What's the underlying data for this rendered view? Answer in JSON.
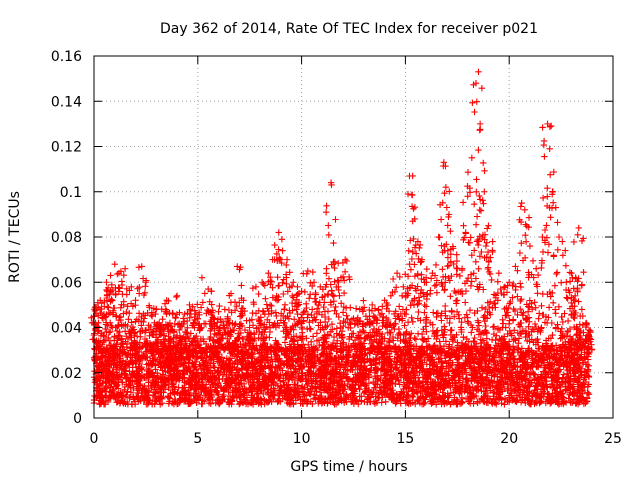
{
  "chart_data": {
    "type": "scatter",
    "title": "Day 362 of 2014, Rate Of TEC Index for receiver p021",
    "xlabel": "GPS time / hours",
    "ylabel": "ROTI / TECUs",
    "xlim": [
      0,
      25
    ],
    "ylim": [
      0,
      0.16
    ],
    "xticks": [
      0,
      5,
      10,
      15,
      20,
      25
    ],
    "xtick_labels": [
      "0",
      "5",
      "10",
      "15",
      "20",
      "25"
    ],
    "yticks": [
      0,
      0.02,
      0.04,
      0.06,
      0.08,
      0.1,
      0.12,
      0.14,
      0.16
    ],
    "ytick_labels": [
      "0",
      "0.02",
      "0.04",
      "0.06",
      "0.08",
      "0.1",
      "0.12",
      "0.14",
      "0.16"
    ],
    "grid": true,
    "marker": "+",
    "color": "#ff0000",
    "series": [
      {
        "name": "ROTI",
        "points": [
          [
            0.05,
            0.049
          ],
          [
            0.1,
            0.046
          ],
          [
            0.3,
            0.052
          ],
          [
            0.6,
            0.06
          ],
          [
            0.8,
            0.063
          ],
          [
            1.0,
            0.068
          ],
          [
            1.2,
            0.064
          ],
          [
            1.5,
            0.066
          ],
          [
            1.8,
            0.058
          ],
          [
            2.0,
            0.052
          ],
          [
            2.3,
            0.067
          ],
          [
            2.5,
            0.06
          ],
          [
            2.8,
            0.045
          ],
          [
            3.0,
            0.048
          ],
          [
            3.2,
            0.04
          ],
          [
            3.5,
            0.052
          ],
          [
            3.8,
            0.046
          ],
          [
            4.0,
            0.054
          ],
          [
            4.3,
            0.044
          ],
          [
            4.6,
            0.05
          ],
          [
            4.9,
            0.046
          ],
          [
            5.2,
            0.062
          ],
          [
            5.5,
            0.057
          ],
          [
            5.8,
            0.044
          ],
          [
            6.0,
            0.047
          ],
          [
            6.3,
            0.048
          ],
          [
            6.6,
            0.055
          ],
          [
            6.9,
            0.067
          ],
          [
            7.2,
            0.052
          ],
          [
            7.5,
            0.043
          ],
          [
            7.8,
            0.058
          ],
          [
            8.1,
            0.06
          ],
          [
            8.4,
            0.064
          ],
          [
            8.7,
            0.07
          ],
          [
            8.9,
            0.082
          ],
          [
            9.05,
            0.079
          ],
          [
            9.3,
            0.07
          ],
          [
            9.6,
            0.06
          ],
          [
            9.8,
            0.058
          ],
          [
            10.0,
            0.056
          ],
          [
            10.3,
            0.065
          ],
          [
            10.6,
            0.06
          ],
          [
            10.9,
            0.058
          ],
          [
            11.2,
            0.066
          ],
          [
            11.42,
            0.104
          ],
          [
            11.6,
            0.069
          ],
          [
            11.9,
            0.062
          ],
          [
            12.1,
            0.07
          ],
          [
            12.5,
            0.044
          ],
          [
            12.8,
            0.048
          ],
          [
            13.1,
            0.045
          ],
          [
            13.4,
            0.05
          ],
          [
            13.7,
            0.048
          ],
          [
            14.0,
            0.052
          ],
          [
            14.3,
            0.054
          ],
          [
            14.6,
            0.064
          ],
          [
            14.9,
            0.058
          ],
          [
            15.2,
            0.068
          ],
          [
            15.35,
            0.107
          ],
          [
            15.45,
            0.088
          ],
          [
            15.6,
            0.078
          ],
          [
            15.8,
            0.07
          ],
          [
            16.0,
            0.062
          ],
          [
            16.3,
            0.064
          ],
          [
            16.6,
            0.08
          ],
          [
            16.85,
            0.113
          ],
          [
            16.95,
            0.102
          ],
          [
            17.1,
            0.09
          ],
          [
            17.3,
            0.075
          ],
          [
            17.5,
            0.066
          ],
          [
            17.8,
            0.085
          ],
          [
            18.0,
            0.098
          ],
          [
            18.2,
            0.115
          ],
          [
            18.4,
            0.148
          ],
          [
            18.52,
            0.153
          ],
          [
            18.6,
            0.13
          ],
          [
            18.8,
            0.1
          ],
          [
            19.0,
            0.085
          ],
          [
            19.2,
            0.078
          ],
          [
            19.5,
            0.064
          ],
          [
            19.8,
            0.058
          ],
          [
            20.0,
            0.06
          ],
          [
            20.3,
            0.067
          ],
          [
            20.6,
            0.095
          ],
          [
            20.75,
            0.092
          ],
          [
            21.0,
            0.076
          ],
          [
            21.3,
            0.066
          ],
          [
            21.6,
            0.08
          ],
          [
            21.85,
            0.13
          ],
          [
            21.95,
            0.119
          ],
          [
            22.1,
            0.1
          ],
          [
            22.4,
            0.08
          ],
          [
            22.7,
            0.074
          ],
          [
            23.0,
            0.064
          ],
          [
            23.2,
            0.062
          ],
          [
            23.35,
            0.084
          ],
          [
            23.5,
            0.048
          ],
          [
            23.7,
            0.042
          ],
          [
            23.85,
            0.036
          ]
        ]
      }
    ]
  }
}
